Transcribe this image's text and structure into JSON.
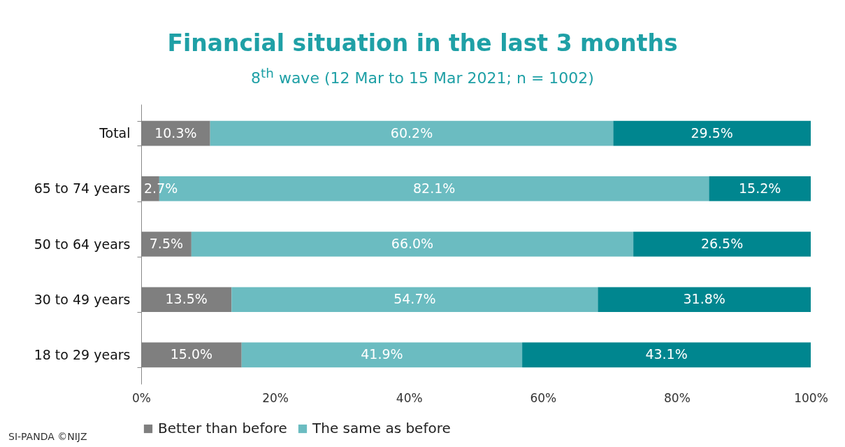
{
  "chart_data": {
    "type": "bar",
    "orientation": "horizontal",
    "stacked": true,
    "title": "Financial situation in the last 3 months",
    "subtitle": "8$^{th}$ wave (12 Mar to 15 Mar 2021; n = 1002)",
    "categories": [
      "Total",
      "65 to 74 years",
      "50 to 64 years",
      "30 to 49 years",
      "18 to 29 years"
    ],
    "series": [
      {
        "name": "Better than before",
        "color": "#7f7f7f",
        "values": [
          10.3,
          2.7,
          7.5,
          13.5,
          15.0
        ],
        "value_labels": [
          "10.3%",
          "2.7%",
          "7.5%",
          "13.5%",
          "15.0%"
        ]
      },
      {
        "name": "The same as before",
        "color": "#6bbcc1",
        "values": [
          60.2,
          82.1,
          66.0,
          54.7,
          41.9
        ],
        "value_labels": [
          "60.2%",
          "82.1%",
          "66.0%",
          "54.7%",
          "41.9%"
        ]
      },
      {
        "color": "#00868f",
        "values": [
          29.5,
          15.2,
          26.5,
          31.8,
          43.1
        ],
        "value_labels": [
          "29.5%",
          "15.2%",
          "26.5%",
          "31.8%",
          "43.1%"
        ]
      }
    ],
    "xlim": [
      0,
      100
    ],
    "xticks": [
      {
        "value": 0,
        "label": "0%"
      },
      {
        "value": 20,
        "label": "20%"
      },
      {
        "value": 40,
        "label": "40%"
      },
      {
        "value": 60,
        "label": "60%"
      },
      {
        "value": 80,
        "label": "80%"
      },
      {
        "value": 100,
        "label": "100%"
      }
    ],
    "grid": false,
    "legend": "bottom",
    "annotations": [
      "SI-PANDA ©NIJZ"
    ]
  }
}
